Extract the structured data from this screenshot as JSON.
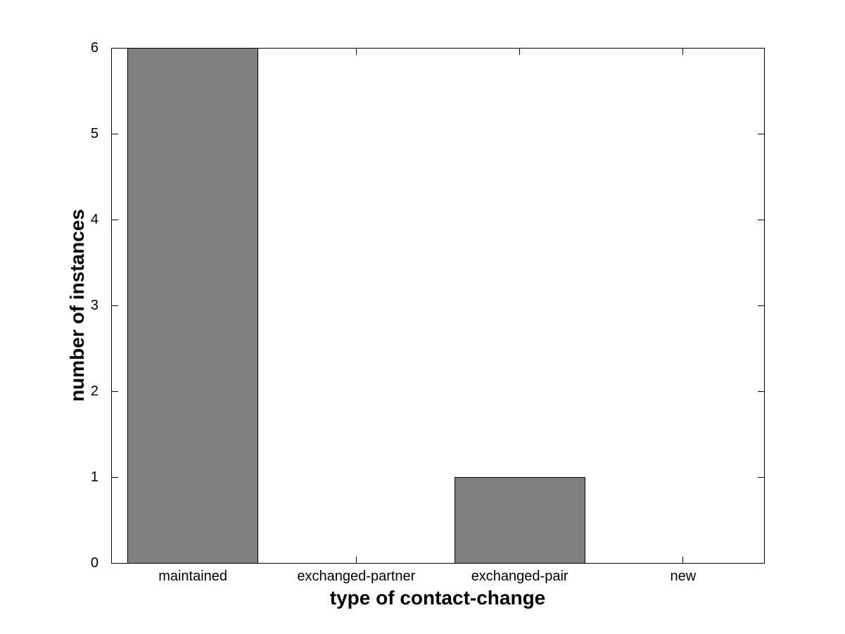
{
  "figure": {
    "background": "#ffffff"
  },
  "chart_data": {
    "type": "bar",
    "title": "",
    "categories": [
      "maintained",
      "exchanged-partner",
      "exchanged-pair",
      "new"
    ],
    "values": [
      6,
      0,
      1,
      0
    ],
    "xlabel": "type of contact-change",
    "ylabel": "number of instances",
    "ylim": [
      0,
      6
    ],
    "yticks": [
      0,
      1,
      2,
      3,
      4,
      5,
      6
    ],
    "bar_width_fraction": 0.8,
    "bar_fill": "#808080",
    "bar_edge": "#000000",
    "axis_color": "#000000",
    "grid": false,
    "box": true,
    "tick_direction": "in",
    "legend": null
  }
}
